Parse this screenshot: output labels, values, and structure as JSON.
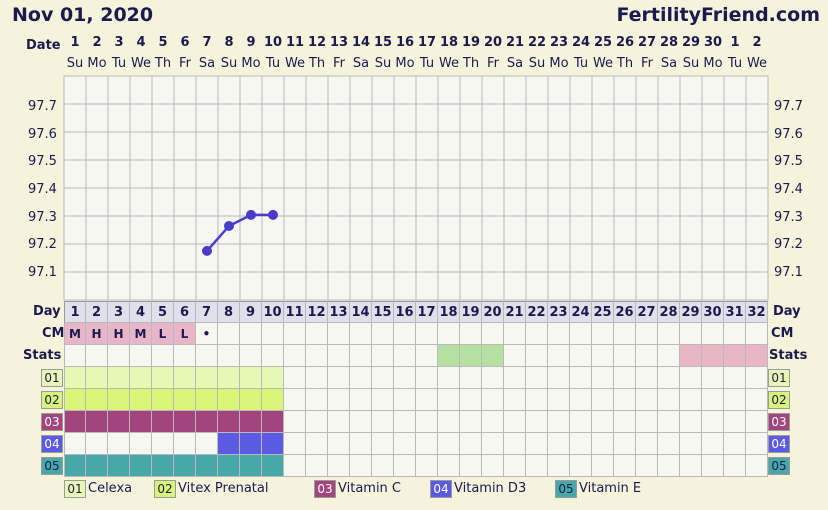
{
  "header": {
    "date_title": "Nov 01, 2020",
    "site": "FertilityFriend.com"
  },
  "labels": {
    "date": "Date",
    "day": "Day",
    "cm": "CM",
    "stats": "Stats"
  },
  "dates": [
    "1",
    "2",
    "3",
    "4",
    "5",
    "6",
    "7",
    "8",
    "9",
    "10",
    "11",
    "12",
    "13",
    "14",
    "15",
    "16",
    "17",
    "18",
    "19",
    "20",
    "21",
    "22",
    "23",
    "24",
    "25",
    "26",
    "27",
    "28",
    "29",
    "30",
    "1",
    "2"
  ],
  "weekdays": [
    "Su",
    "Mo",
    "Tu",
    "We",
    "Th",
    "Fr",
    "Sa",
    "Su",
    "Mo",
    "Tu",
    "We",
    "Th",
    "Fr",
    "Sa",
    "Su",
    "Mo",
    "Tu",
    "We",
    "Th",
    "Fr",
    "Sa",
    "Su",
    "Mo",
    "Tu",
    "We",
    "Th",
    "Fr",
    "Sa",
    "Su",
    "Mo",
    "Tu",
    "We"
  ],
  "cycle_days": [
    "1",
    "2",
    "3",
    "4",
    "5",
    "6",
    "7",
    "8",
    "9",
    "10",
    "11",
    "12",
    "13",
    "14",
    "15",
    "16",
    "17",
    "18",
    "19",
    "20",
    "21",
    "22",
    "23",
    "24",
    "25",
    "26",
    "27",
    "28",
    "29",
    "30",
    "31",
    "32"
  ],
  "cm": [
    "M",
    "H",
    "H",
    "M",
    "L",
    "L",
    "•",
    "",
    "",
    "",
    "",
    "",
    "",
    "",
    "",
    "",
    "",
    "",
    "",
    "",
    "",
    "",
    "",
    "",
    "",
    "",
    "",
    "",
    "",
    "",
    "",
    ""
  ],
  "chart_data": {
    "type": "line",
    "ylabel": "",
    "yticks": [
      "97.7",
      "97.6",
      "97.5",
      "97.4",
      "97.3",
      "97.2",
      "97.1"
    ],
    "ylim": [
      97.0,
      97.8
    ],
    "x": [
      7,
      8,
      9,
      10
    ],
    "y": [
      97.18,
      97.27,
      97.31,
      97.31
    ],
    "grid": true
  },
  "stats_fills": [
    {
      "from": 18,
      "to": 20,
      "color": "#b6e0a0"
    },
    {
      "from": 29,
      "to": 32,
      "color": "#e8b6c4"
    }
  ],
  "meds": [
    {
      "code": "01",
      "name": "Celexa",
      "color": "#e6f8b4",
      "tag_color": "#e6f8b4",
      "days": [
        1,
        2,
        3,
        4,
        5,
        6,
        7,
        8,
        9,
        10
      ]
    },
    {
      "code": "02",
      "name": "Vitex Prenatal",
      "color": "#d8f57a",
      "tag_color": "#d8f57a",
      "days": [
        1,
        2,
        3,
        4,
        5,
        6,
        7,
        8,
        9,
        10
      ]
    },
    {
      "code": "03",
      "name": "Vitamin C",
      "color": "#a2447d",
      "tag_color": "#a2447d",
      "days": [
        1,
        2,
        3,
        4,
        5,
        6,
        7,
        8,
        9,
        10
      ]
    },
    {
      "code": "04",
      "name": "Vitamin D3",
      "color": "#5a5ae2",
      "tag_color": "#5a5ae2",
      "days": [
        8,
        9,
        10
      ]
    },
    {
      "code": "05",
      "name": "Vitamin E",
      "color": "#46a8a8",
      "tag_color": "#46a8a8",
      "days": [
        1,
        2,
        3,
        4,
        5,
        6,
        7,
        8,
        9,
        10
      ]
    }
  ],
  "colors": {
    "line": "#4a3ec8",
    "grid": "#b9b9b9",
    "daybar": "#e0e0ea",
    "cm_fill": "#e8b6c8",
    "empty": "#f7f7f2"
  }
}
